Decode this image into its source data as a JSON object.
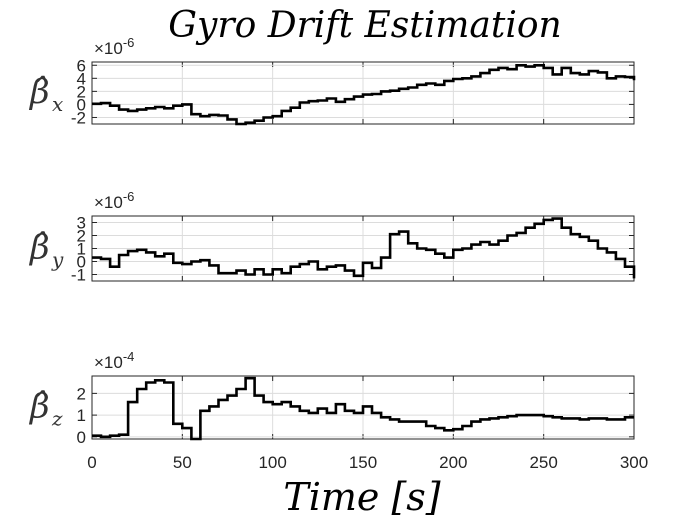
{
  "chart_data": {
    "type": "line",
    "title": "Gyro Drift Estimation",
    "xlabel": "Time [s]",
    "xlim": [
      0,
      300
    ],
    "xticks": [
      0,
      50,
      100,
      150,
      200,
      250,
      300
    ],
    "grid": true,
    "panels": [
      {
        "ylabel_main": "β̂",
        "ylabel_sub": "x",
        "exponent": "-6",
        "ylim": [
          -3,
          6.5
        ],
        "yticks": [
          -2,
          0,
          2,
          4,
          6
        ],
        "series": [
          {
            "x": [
              0,
              5,
              10,
              15,
              20,
              25,
              30,
              35,
              40,
              45,
              50,
              55,
              60,
              65,
              70,
              75,
              80,
              85,
              90,
              95,
              100,
              105,
              110,
              115,
              120,
              125,
              130,
              135,
              140,
              145,
              150,
              155,
              160,
              165,
              170,
              175,
              180,
              185,
              190,
              195,
              200,
              205,
              210,
              215,
              220,
              225,
              230,
              235,
              240,
              245,
              250,
              255,
              260,
              265,
              270,
              275,
              280,
              285,
              290,
              295,
              300
            ],
            "y": [
              0.1,
              0.2,
              -0.2,
              -0.8,
              -1.0,
              -0.8,
              -0.6,
              -0.4,
              -0.6,
              -0.2,
              0.0,
              -1.5,
              -1.8,
              -1.6,
              -1.7,
              -2.3,
              -3.0,
              -2.8,
              -2.5,
              -2.0,
              -1.8,
              -1.0,
              -0.5,
              0.3,
              0.5,
              0.6,
              0.9,
              0.4,
              0.8,
              1.2,
              1.5,
              1.6,
              2.0,
              2.1,
              2.4,
              2.6,
              3.0,
              3.2,
              3.0,
              3.6,
              3.9,
              4.0,
              4.3,
              4.8,
              5.3,
              5.6,
              5.4,
              6.0,
              5.8,
              6.0,
              5.6,
              4.6,
              5.6,
              4.8,
              4.6,
              5.1,
              4.9,
              4.0,
              4.3,
              4.2,
              3.7
            ]
          }
        ]
      },
      {
        "ylabel_main": "β̂",
        "ylabel_sub": "y",
        "exponent": "-6",
        "ylim": [
          -1.5,
          3.5
        ],
        "yticks": [
          -1,
          0,
          1,
          2,
          3
        ],
        "series": [
          {
            "x": [
              0,
              5,
              10,
              15,
              20,
              25,
              30,
              35,
              40,
              45,
              50,
              55,
              60,
              65,
              70,
              75,
              80,
              85,
              90,
              95,
              100,
              105,
              110,
              115,
              120,
              125,
              130,
              135,
              140,
              145,
              150,
              155,
              160,
              165,
              170,
              175,
              180,
              185,
              190,
              195,
              200,
              205,
              210,
              215,
              220,
              225,
              230,
              235,
              240,
              245,
              250,
              255,
              260,
              265,
              270,
              275,
              280,
              285,
              290,
              295,
              300
            ],
            "y": [
              0.3,
              0.2,
              -0.4,
              0.5,
              0.8,
              0.9,
              0.7,
              0.4,
              0.6,
              -0.1,
              -0.2,
              0.0,
              0.1,
              -0.3,
              -0.9,
              -0.9,
              -0.7,
              -1.0,
              -0.6,
              -1.0,
              -0.6,
              -0.9,
              -0.4,
              -0.2,
              0.0,
              -0.6,
              -0.4,
              -0.3,
              -0.7,
              -1.1,
              -0.1,
              -0.5,
              0.3,
              2.1,
              2.3,
              1.4,
              1.0,
              0.9,
              0.6,
              0.3,
              0.9,
              1.0,
              1.3,
              1.5,
              1.3,
              1.6,
              2.0,
              2.2,
              2.6,
              2.9,
              3.2,
              3.3,
              2.6,
              2.1,
              1.9,
              1.6,
              1.0,
              0.7,
              0.2,
              -0.4,
              -1.3
            ]
          }
        ]
      },
      {
        "ylabel_main": "β̂",
        "ylabel_sub": "z",
        "exponent": "-4",
        "ylim": [
          -0.1,
          2.8
        ],
        "yticks": [
          0,
          1,
          2
        ],
        "series": [
          {
            "x": [
              0,
              5,
              10,
              15,
              20,
              25,
              30,
              35,
              40,
              45,
              50,
              55,
              60,
              65,
              70,
              75,
              80,
              85,
              90,
              95,
              100,
              105,
              110,
              115,
              120,
              125,
              130,
              135,
              140,
              145,
              150,
              155,
              160,
              165,
              170,
              175,
              180,
              185,
              190,
              195,
              200,
              205,
              210,
              215,
              220,
              225,
              230,
              235,
              240,
              245,
              250,
              255,
              260,
              265,
              270,
              275,
              280,
              285,
              290,
              295,
              300
            ],
            "y": [
              0.05,
              0.0,
              0.05,
              0.1,
              1.6,
              2.2,
              2.5,
              2.6,
              2.5,
              0.6,
              0.4,
              -0.1,
              1.2,
              1.4,
              1.7,
              1.9,
              2.2,
              2.7,
              1.9,
              1.6,
              1.5,
              1.6,
              1.4,
              1.2,
              1.1,
              1.3,
              1.1,
              1.5,
              1.2,
              1.1,
              1.4,
              1.1,
              0.9,
              0.8,
              0.7,
              0.7,
              0.7,
              0.5,
              0.4,
              0.3,
              0.35,
              0.5,
              0.7,
              0.8,
              0.85,
              0.9,
              0.95,
              1.0,
              1.0,
              1.0,
              0.95,
              0.9,
              0.85,
              0.85,
              0.8,
              0.85,
              0.85,
              0.8,
              0.8,
              0.9,
              0.9
            ]
          }
        ]
      }
    ]
  }
}
